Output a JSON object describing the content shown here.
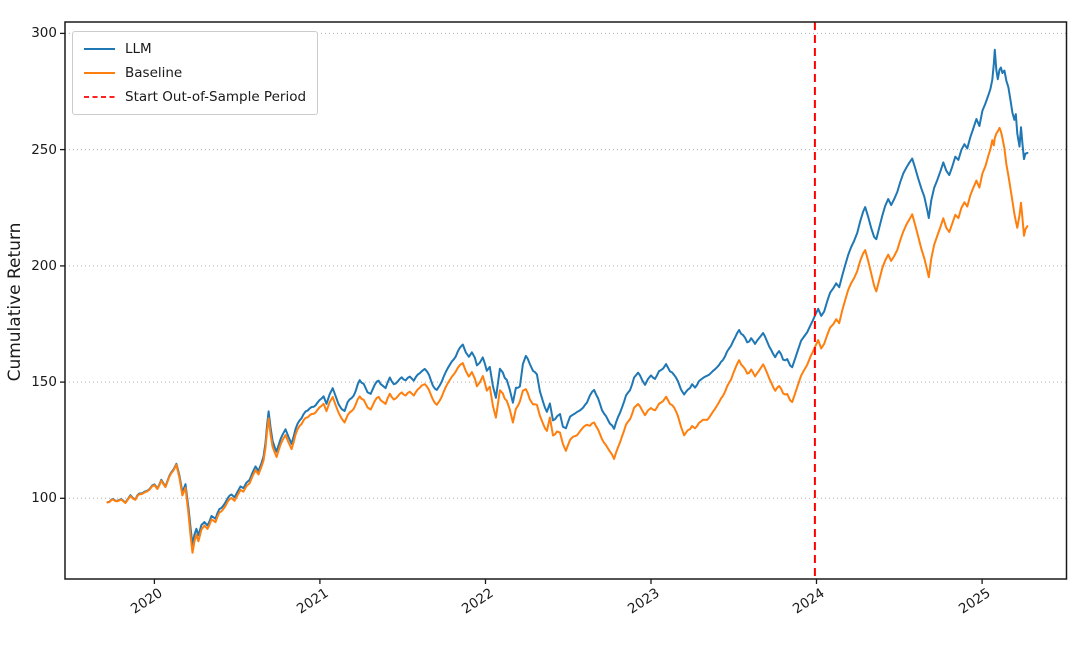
{
  "figure": {
    "ylabel": "Cumulative Return",
    "legend": {
      "items": [
        {
          "label": "LLM",
          "color": "#1f77b4",
          "style": "solid"
        },
        {
          "label": "Baseline",
          "color": "#ff7f0e",
          "style": "solid"
        },
        {
          "label": "Start Out-of-Sample Period",
          "color": "#ff0000",
          "style": "dashed"
        }
      ]
    }
  },
  "chart_data": {
    "type": "line",
    "title": "",
    "xlabel": "",
    "ylabel": "Cumulative Return",
    "x_unit": "decimal_year",
    "x_ticks": [
      2020,
      2021,
      2022,
      2023,
      2024,
      2025
    ],
    "x_tick_labels": [
      "2020",
      "2021",
      "2022",
      "2023",
      "2024",
      "2025"
    ],
    "y_ticks": [
      100,
      150,
      200,
      250,
      300
    ],
    "y_tick_labels": [
      "100",
      "150",
      "200",
      "250",
      "300"
    ],
    "xlim": [
      2019.46,
      2025.51
    ],
    "ylim": [
      65.3,
      304.9
    ],
    "grid": "horizontal-dotted",
    "legend_position": "upper-left",
    "background": "#ffffff",
    "grid_color": "#b0b0b0",
    "annotations": {
      "vline": {
        "x": 2023.99,
        "label": "Start Out-of-Sample Period",
        "color": "#ff0000",
        "style": "dashed"
      }
    },
    "series_meta": [
      {
        "name": "LLM",
        "color": "#1f77b4"
      },
      {
        "name": "Baseline",
        "color": "#ff7f0e"
      }
    ],
    "points": [
      [
        2019.716,
        98.3,
        98.3
      ],
      [
        2019.728,
        98.6,
        98.5
      ],
      [
        2019.752,
        99.5,
        99.3
      ],
      [
        2019.776,
        98.0,
        97.9
      ],
      [
        2019.8,
        99.6,
        99.4
      ],
      [
        2019.825,
        99.0,
        98.8
      ],
      [
        2019.855,
        100.6,
        100.3
      ],
      [
        2019.885,
        100.0,
        99.8
      ],
      [
        2019.909,
        101.6,
        101.3
      ],
      [
        2019.94,
        103.0,
        102.7
      ],
      [
        2019.97,
        104.3,
        104.0
      ],
      [
        2020.0,
        106.3,
        106.0
      ],
      [
        2020.018,
        105.0,
        104.7
      ],
      [
        2020.042,
        107.6,
        107.3
      ],
      [
        2020.067,
        105.6,
        105.2
      ],
      [
        2020.091,
        110.0,
        109.6
      ],
      [
        2020.115,
        112.6,
        112.2
      ],
      [
        2020.133,
        114.8,
        114.4
      ],
      [
        2020.151,
        110.0,
        109.0
      ],
      [
        2020.169,
        103.0,
        101.6
      ],
      [
        2020.188,
        105.6,
        104.1
      ],
      [
        2020.206,
        95.0,
        92.6
      ],
      [
        2020.218,
        87.0,
        83.6
      ],
      [
        2020.23,
        79.5,
        76.0
      ],
      [
        2020.242,
        84.0,
        81.1
      ],
      [
        2020.254,
        87.1,
        84.6
      ],
      [
        2020.266,
        84.1,
        81.6
      ],
      [
        2020.284,
        88.6,
        86.6
      ],
      [
        2020.302,
        90.1,
        88.6
      ],
      [
        2020.321,
        88.6,
        87.1
      ],
      [
        2020.345,
        93.1,
        91.6
      ],
      [
        2020.369,
        91.6,
        90.1
      ],
      [
        2020.393,
        95.6,
        94.1
      ],
      [
        2020.417,
        97.1,
        95.6
      ],
      [
        2020.442,
        99.6,
        98.1
      ],
      [
        2020.466,
        101.6,
        100.1
      ],
      [
        2020.484,
        100.6,
        99.1
      ],
      [
        2020.502,
        103.1,
        101.6
      ],
      [
        2020.52,
        105.1,
        103.6
      ],
      [
        2020.538,
        104.1,
        102.6
      ],
      [
        2020.556,
        107.1,
        105.6
      ],
      [
        2020.575,
        108.1,
        106.6
      ],
      [
        2020.593,
        110.6,
        109.1
      ],
      [
        2020.611,
        112.9,
        111.4
      ],
      [
        2020.629,
        111.6,
        110.1
      ],
      [
        2020.647,
        115.1,
        113.6
      ],
      [
        2020.659,
        118.0,
        116.3
      ],
      [
        2020.671,
        124.0,
        121.8
      ],
      [
        2020.68,
        131.0,
        128.5
      ],
      [
        2020.69,
        138.0,
        135.0
      ],
      [
        2020.702,
        131.0,
        128.0
      ],
      [
        2020.714,
        125.0,
        122.5
      ],
      [
        2020.726,
        122.5,
        120.3
      ],
      [
        2020.738,
        120.5,
        118.2
      ],
      [
        2020.75,
        122.5,
        120.2
      ],
      [
        2020.774,
        127.5,
        125.2
      ],
      [
        2020.792,
        130.3,
        127.8
      ],
      [
        2020.811,
        127.0,
        124.6
      ],
      [
        2020.829,
        123.5,
        121.2
      ],
      [
        2020.853,
        129.8,
        127.4
      ],
      [
        2020.877,
        134.3,
        131.9
      ],
      [
        2020.901,
        136.0,
        133.4
      ],
      [
        2020.926,
        137.5,
        134.6
      ],
      [
        2020.95,
        139.5,
        136.5
      ],
      [
        2020.974,
        140.5,
        137.4
      ],
      [
        2020.998,
        142.0,
        138.9
      ],
      [
        2021.022,
        144.0,
        140.8
      ],
      [
        2021.04,
        141.0,
        137.9
      ],
      [
        2021.059,
        144.8,
        141.4
      ],
      [
        2021.077,
        147.3,
        143.5
      ],
      [
        2021.095,
        144.5,
        140.6
      ],
      [
        2021.113,
        141.0,
        137.3
      ],
      [
        2021.131,
        138.8,
        134.7
      ],
      [
        2021.149,
        137.5,
        132.6
      ],
      [
        2021.167,
        141.0,
        135.4
      ],
      [
        2021.192,
        143.2,
        137.6
      ],
      [
        2021.216,
        146.5,
        140.7
      ],
      [
        2021.24,
        151.0,
        144.0
      ],
      [
        2021.264,
        149.3,
        142.4
      ],
      [
        2021.288,
        146.0,
        139.5
      ],
      [
        2021.307,
        145.0,
        138.2
      ],
      [
        2021.331,
        149.0,
        142.0
      ],
      [
        2021.355,
        150.6,
        143.6
      ],
      [
        2021.379,
        148.5,
        141.6
      ],
      [
        2021.397,
        147.5,
        140.7
      ],
      [
        2021.422,
        152.0,
        145.0
      ],
      [
        2021.446,
        149.6,
        143.0
      ],
      [
        2021.47,
        151.0,
        144.6
      ],
      [
        2021.494,
        151.6,
        145.1
      ],
      [
        2021.518,
        150.6,
        144.1
      ],
      [
        2021.543,
        152.6,
        146.1
      ],
      [
        2021.567,
        150.1,
        143.7
      ],
      [
        2021.591,
        153.1,
        146.7
      ],
      [
        2021.615,
        154.1,
        148.0
      ],
      [
        2021.633,
        155.1,
        148.6
      ],
      [
        2021.658,
        152.6,
        146.1
      ],
      [
        2021.682,
        149.1,
        143.1
      ],
      [
        2021.706,
        147.0,
        140.6
      ],
      [
        2021.724,
        148.6,
        142.1
      ],
      [
        2021.748,
        152.6,
        146.1
      ],
      [
        2021.772,
        155.6,
        149.1
      ],
      [
        2021.797,
        158.1,
        151.6
      ],
      [
        2021.821,
        161.1,
        154.6
      ],
      [
        2021.845,
        165.1,
        157.6
      ],
      [
        2021.863,
        166.6,
        158.6
      ],
      [
        2021.881,
        163.1,
        155.1
      ],
      [
        2021.9,
        161.1,
        152.6
      ],
      [
        2021.918,
        162.6,
        154.1
      ],
      [
        2021.936,
        160.1,
        151.1
      ],
      [
        2021.948,
        157.6,
        148.6
      ],
      [
        2021.966,
        158.6,
        150.1
      ],
      [
        2021.984,
        160.1,
        152.1
      ],
      [
        2022.008,
        154.6,
        146.1
      ],
      [
        2022.026,
        156.1,
        147.6
      ],
      [
        2022.045,
        147.6,
        139.1
      ],
      [
        2022.063,
        142.6,
        134.1
      ],
      [
        2022.087,
        155.3,
        146.1
      ],
      [
        2022.105,
        154.1,
        145.1
      ],
      [
        2022.129,
        151.1,
        142.1
      ],
      [
        2022.147,
        146.1,
        137.6
      ],
      [
        2022.166,
        140.6,
        132.1
      ],
      [
        2022.184,
        147.1,
        138.1
      ],
      [
        2022.208,
        148.6,
        142.1
      ],
      [
        2022.226,
        158.1,
        146.6
      ],
      [
        2022.244,
        161.4,
        147.1
      ],
      [
        2022.268,
        158.1,
        142.9
      ],
      [
        2022.287,
        155.6,
        141.1
      ],
      [
        2022.311,
        153.1,
        140.0
      ],
      [
        2022.329,
        146.1,
        135.6
      ],
      [
        2022.347,
        142.1,
        132.6
      ],
      [
        2022.371,
        137.1,
        128.9
      ],
      [
        2022.389,
        140.1,
        134.1
      ],
      [
        2022.408,
        133.6,
        127.1
      ],
      [
        2022.432,
        135.1,
        128.6
      ],
      [
        2022.45,
        136.6,
        128.6
      ],
      [
        2022.468,
        131.6,
        124.1
      ],
      [
        2022.486,
        130.6,
        120.9
      ],
      [
        2022.511,
        135.6,
        125.6
      ],
      [
        2022.529,
        136.6,
        127.1
      ],
      [
        2022.553,
        137.1,
        127.1
      ],
      [
        2022.571,
        138.1,
        129.1
      ],
      [
        2022.589,
        139.6,
        131.1
      ],
      [
        2022.613,
        141.1,
        131.6
      ],
      [
        2022.631,
        144.1,
        131.1
      ],
      [
        2022.656,
        146.6,
        132.6
      ],
      [
        2022.68,
        143.1,
        129.6
      ],
      [
        2022.704,
        138.6,
        126.1
      ],
      [
        2022.728,
        135.1,
        122.6
      ],
      [
        2022.752,
        132.1,
        120.1
      ],
      [
        2022.777,
        130.6,
        117.6
      ],
      [
        2022.801,
        135.1,
        122.1
      ],
      [
        2022.825,
        139.1,
        126.6
      ],
      [
        2022.849,
        143.6,
        131.1
      ],
      [
        2022.873,
        147.1,
        134.6
      ],
      [
        2022.898,
        152.1,
        139.1
      ],
      [
        2022.922,
        154.1,
        140.6
      ],
      [
        2022.946,
        150.1,
        137.1
      ],
      [
        2022.964,
        148.6,
        135.6
      ],
      [
        2022.982,
        151.1,
        137.6
      ],
      [
        2023.0,
        152.6,
        138.6
      ],
      [
        2023.024,
        151.1,
        137.6
      ],
      [
        2023.048,
        154.1,
        140.1
      ],
      [
        2023.073,
        156.1,
        142.1
      ],
      [
        2023.091,
        157.6,
        143.6
      ],
      [
        2023.115,
        154.1,
        140.1
      ],
      [
        2023.139,
        152.6,
        138.6
      ],
      [
        2023.163,
        150.1,
        135.1
      ],
      [
        2023.181,
        146.6,
        130.6
      ],
      [
        2023.2,
        144.1,
        126.6
      ],
      [
        2023.224,
        147.1,
        129.6
      ],
      [
        2023.248,
        149.1,
        131.1
      ],
      [
        2023.266,
        147.6,
        130.1
      ],
      [
        2023.29,
        150.6,
        132.6
      ],
      [
        2023.314,
        152.1,
        134.1
      ],
      [
        2023.339,
        152.6,
        133.6
      ],
      [
        2023.363,
        154.1,
        136.1
      ],
      [
        2023.387,
        155.6,
        138.6
      ],
      [
        2023.411,
        157.6,
        141.6
      ],
      [
        2023.435,
        160.1,
        144.6
      ],
      [
        2023.46,
        163.1,
        148.1
      ],
      [
        2023.484,
        166.1,
        151.6
      ],
      [
        2023.508,
        169.6,
        156.1
      ],
      [
        2023.532,
        172.6,
        159.6
      ],
      [
        2023.556,
        170.1,
        156.6
      ],
      [
        2023.581,
        167.6,
        154.1
      ],
      [
        2023.605,
        169.1,
        155.6
      ],
      [
        2023.629,
        166.6,
        152.6
      ],
      [
        2023.653,
        169.6,
        155.6
      ],
      [
        2023.677,
        171.1,
        157.6
      ],
      [
        2023.702,
        167.1,
        153.6
      ],
      [
        2023.726,
        164.6,
        150.6
      ],
      [
        2023.75,
        161.1,
        146.6
      ],
      [
        2023.774,
        162.6,
        147.6
      ],
      [
        2023.798,
        159.6,
        145.1
      ],
      [
        2023.823,
        160.6,
        145.6
      ],
      [
        2023.841,
        157.6,
        142.6
      ],
      [
        2023.853,
        156.6,
        141.6
      ],
      [
        2023.871,
        160.6,
        145.6
      ],
      [
        2023.889,
        164.1,
        149.1
      ],
      [
        2023.907,
        167.1,
        152.1
      ],
      [
        2023.925,
        169.6,
        155.1
      ],
      [
        2023.944,
        171.6,
        157.6
      ],
      [
        2023.962,
        174.1,
        160.6
      ],
      [
        2023.98,
        177.1,
        163.6
      ],
      [
        2023.992,
        179.1,
        165.6
      ],
      [
        2024.01,
        181.6,
        168.1
      ],
      [
        2024.028,
        178.6,
        164.6
      ],
      [
        2024.046,
        181.1,
        167.1
      ],
      [
        2024.064,
        184.6,
        170.1
      ],
      [
        2024.082,
        188.1,
        173.1
      ],
      [
        2024.101,
        190.6,
        175.1
      ],
      [
        2024.119,
        193.1,
        177.6
      ],
      [
        2024.137,
        191.6,
        176.1
      ],
      [
        2024.155,
        196.1,
        181.1
      ],
      [
        2024.173,
        200.1,
        185.1
      ],
      [
        2024.191,
        204.1,
        189.1
      ],
      [
        2024.209,
        207.6,
        192.1
      ],
      [
        2024.227,
        211.1,
        195.1
      ],
      [
        2024.246,
        215.1,
        198.6
      ],
      [
        2024.264,
        219.6,
        202.6
      ],
      [
        2024.282,
        223.6,
        205.6
      ],
      [
        2024.294,
        225.6,
        207.1
      ],
      [
        2024.312,
        221.6,
        202.6
      ],
      [
        2024.33,
        217.1,
        197.6
      ],
      [
        2024.348,
        213.1,
        192.1
      ],
      [
        2024.361,
        212.1,
        189.6
      ],
      [
        2024.379,
        216.6,
        194.1
      ],
      [
        2024.397,
        221.1,
        198.6
      ],
      [
        2024.415,
        226.1,
        202.6
      ],
      [
        2024.433,
        229.6,
        205.6
      ],
      [
        2024.451,
        226.6,
        202.6
      ],
      [
        2024.469,
        229.1,
        204.6
      ],
      [
        2024.488,
        232.6,
        207.6
      ],
      [
        2024.506,
        236.1,
        211.1
      ],
      [
        2024.524,
        239.1,
        214.1
      ],
      [
        2024.542,
        241.6,
        217.1
      ],
      [
        2024.56,
        244.1,
        219.6
      ],
      [
        2024.578,
        246.6,
        222.6
      ],
      [
        2024.596,
        242.1,
        217.6
      ],
      [
        2024.615,
        237.6,
        212.6
      ],
      [
        2024.633,
        234.1,
        208.1
      ],
      [
        2024.651,
        230.1,
        203.6
      ],
      [
        2024.669,
        224.1,
        198.1
      ],
      [
        2024.678,
        221.1,
        195.6
      ],
      [
        2024.693,
        228.1,
        203.1
      ],
      [
        2024.711,
        233.1,
        208.6
      ],
      [
        2024.729,
        237.1,
        213.1
      ],
      [
        2024.748,
        240.6,
        216.6
      ],
      [
        2024.766,
        243.6,
        219.6
      ],
      [
        2024.784,
        240.1,
        215.6
      ],
      [
        2024.802,
        239.1,
        214.6
      ],
      [
        2024.82,
        243.6,
        219.1
      ],
      [
        2024.838,
        247.1,
        222.1
      ],
      [
        2024.857,
        245.1,
        220.1
      ],
      [
        2024.875,
        250.1,
        225.1
      ],
      [
        2024.893,
        252.6,
        227.6
      ],
      [
        2024.911,
        250.6,
        225.6
      ],
      [
        2024.929,
        255.1,
        230.1
      ],
      [
        2024.947,
        259.1,
        233.6
      ],
      [
        2024.966,
        263.1,
        236.6
      ],
      [
        2024.984,
        260.1,
        233.6
      ],
      [
        2025.002,
        267.1,
        240.1
      ],
      [
        2025.02,
        269.6,
        242.6
      ],
      [
        2025.038,
        273.6,
        247.6
      ],
      [
        2025.05,
        276.6,
        250.6
      ],
      [
        2025.062,
        280.1,
        254.1
      ],
      [
        2025.071,
        287.1,
        252.1
      ],
      [
        2025.077,
        293.1,
        255.1
      ],
      [
        2025.086,
        284.6,
        257.1
      ],
      [
        2025.095,
        281.1,
        258.6
      ],
      [
        2025.105,
        284.6,
        259.6
      ],
      [
        2025.114,
        285.6,
        258.1
      ],
      [
        2025.123,
        283.6,
        255.6
      ],
      [
        2025.135,
        284.6,
        251.1
      ],
      [
        2025.147,
        279.6,
        243.6
      ],
      [
        2025.159,
        276.1,
        238.1
      ],
      [
        2025.171,
        271.1,
        233.1
      ],
      [
        2025.183,
        265.6,
        227.6
      ],
      [
        2025.195,
        262.1,
        221.6
      ],
      [
        2025.204,
        264.6,
        218.6
      ],
      [
        2025.213,
        256.6,
        216.1
      ],
      [
        2025.226,
        251.6,
        222.1
      ],
      [
        2025.235,
        259.6,
        227.1
      ],
      [
        2025.244,
        252.1,
        220.1
      ],
      [
        2025.253,
        246.1,
        213.1
      ],
      [
        2025.262,
        248.1,
        215.6
      ],
      [
        2025.274,
        248.6,
        217.1
      ]
    ]
  }
}
